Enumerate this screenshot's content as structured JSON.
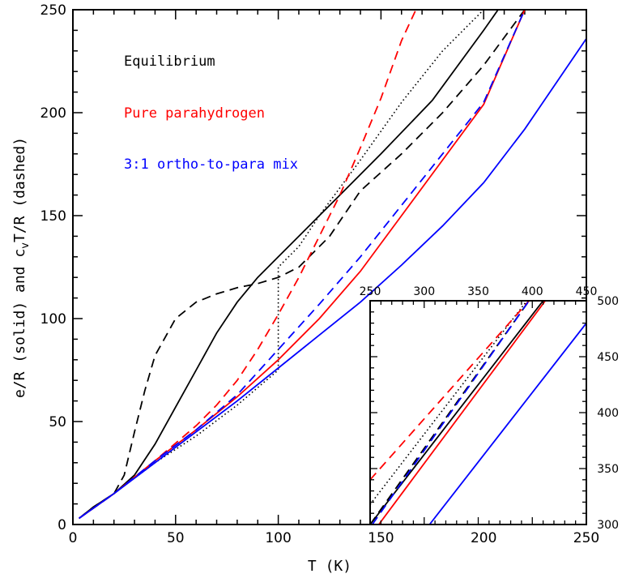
{
  "colors": {
    "equilibrium": "#000000",
    "parahydrogen": "#ff0000",
    "mix": "#0000ff",
    "axes": "#000000",
    "background": "#ffffff"
  },
  "chart_data": [
    {
      "type": "line",
      "role": "main",
      "xlabel": "T (K)",
      "ylabel_parts": {
        "before_sub": "e/R (solid) and c",
        "sub": "v",
        "after_sub": "T/R (dashed)"
      },
      "xlim": [
        0,
        250
      ],
      "ylim": [
        0,
        250
      ],
      "xticks": [
        0,
        50,
        100,
        150,
        200,
        250
      ],
      "yticks": [
        0,
        50,
        100,
        150,
        200,
        250
      ],
      "grid": false,
      "legend_position": "upper-left",
      "legend": [
        {
          "label": "Equilibrium",
          "color_key": "equilibrium"
        },
        {
          "label": "Pure parahydrogen",
          "color_key": "parahydrogen"
        },
        {
          "label": "3:1 ortho-to-para mix",
          "color_key": "mix"
        }
      ],
      "series": [
        {
          "color_key": "equilibrium",
          "style": "solid",
          "x": [
            3,
            10,
            20,
            30,
            40,
            50,
            60,
            70,
            80,
            90,
            100,
            110,
            120,
            130,
            150,
            175,
            200,
            207
          ],
          "y": [
            3,
            8.5,
            15,
            24,
            39,
            57,
            75,
            93,
            108,
            120,
            130,
            140,
            150,
            160,
            180,
            206,
            240,
            250
          ]
        },
        {
          "color_key": "equilibrium",
          "style": "dashed",
          "x": [
            3,
            10,
            20,
            25,
            30,
            35,
            40,
            50,
            60,
            70,
            80,
            90,
            100,
            110,
            125,
            140,
            160,
            180,
            200,
            220
          ],
          "y": [
            3,
            8.5,
            15,
            24,
            45,
            65,
            82,
            100,
            108,
            112,
            115,
            117,
            120,
            125,
            140,
            162,
            180,
            200,
            223,
            250
          ]
        },
        {
          "color_key": "equilibrium",
          "style": "dotted",
          "x": [
            20,
            40,
            60,
            80,
            100,
            100,
            110,
            120,
            140,
            160,
            180,
            200
          ],
          "y": [
            15,
            30,
            43,
            58,
            75,
            125,
            135,
            150,
            177,
            205,
            230,
            250
          ]
        },
        {
          "color_key": "parahydrogen",
          "style": "solid",
          "x": [
            3,
            20,
            40,
            60,
            80,
            100,
            120,
            140,
            160,
            180,
            200,
            220
          ],
          "y": [
            3,
            15,
            31,
            46,
            62,
            80,
            100,
            123,
            150,
            177,
            204,
            250
          ]
        },
        {
          "color_key": "parahydrogen",
          "style": "dashed",
          "x": [
            3,
            20,
            40,
            60,
            70,
            80,
            90,
            100,
            110,
            120,
            130,
            140,
            150,
            160,
            167
          ],
          "y": [
            3,
            15,
            31,
            48,
            58,
            70,
            85,
            102,
            120,
            140,
            160,
            183,
            207,
            235,
            250
          ]
        },
        {
          "color_key": "mix",
          "style": "solid",
          "x": [
            3,
            20,
            40,
            60,
            80,
            100,
            120,
            140,
            160,
            180,
            200,
            220,
            250
          ],
          "y": [
            3,
            15,
            30,
            45,
            60,
            76,
            92,
            108,
            126,
            145,
            166,
            192,
            236
          ]
        },
        {
          "color_key": "mix",
          "style": "dashed",
          "x": [
            3,
            20,
            40,
            60,
            80,
            100,
            120,
            140,
            160,
            180,
            200,
            220
          ],
          "y": [
            3,
            15,
            31,
            46,
            63,
            85,
            107,
            130,
            155,
            180,
            205,
            250
          ]
        }
      ]
    },
    {
      "type": "line",
      "role": "inset",
      "xlim": [
        250,
        450
      ],
      "ylim": [
        300,
        500
      ],
      "xticks": [
        250,
        300,
        350,
        400,
        450
      ],
      "yticks": [
        300,
        350,
        400,
        450,
        500
      ],
      "grid": false,
      "series": [
        {
          "color_key": "equilibrium",
          "style": "solid",
          "x": [
            250,
            410
          ],
          "y": [
            300,
            500
          ]
        },
        {
          "color_key": "equilibrium",
          "style": "dashed",
          "x": [
            250,
            397
          ],
          "y": [
            300,
            500
          ]
        },
        {
          "color_key": "equilibrium",
          "style": "dotted",
          "x": [
            250,
            395
          ],
          "y": [
            318,
            500
          ]
        },
        {
          "color_key": "parahydrogen",
          "style": "solid",
          "x": [
            258,
            412
          ],
          "y": [
            300,
            500
          ]
        },
        {
          "color_key": "parahydrogen",
          "style": "dashed",
          "x": [
            250,
            397
          ],
          "y": [
            340,
            500
          ]
        },
        {
          "color_key": "mix",
          "style": "solid",
          "x": [
            305,
            450
          ],
          "y": [
            300,
            480
          ]
        },
        {
          "color_key": "mix",
          "style": "dashed",
          "x": [
            252,
            397
          ],
          "y": [
            300,
            500
          ]
        }
      ]
    }
  ]
}
